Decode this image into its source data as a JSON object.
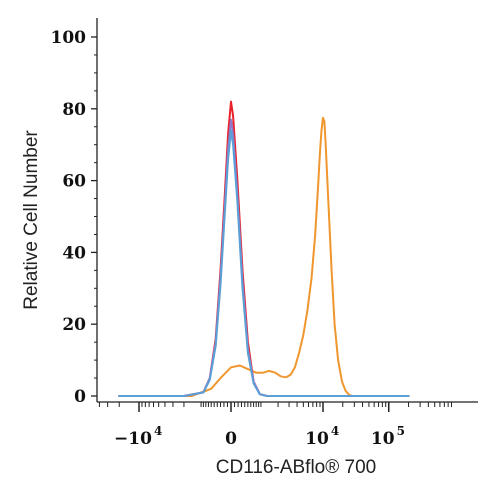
{
  "chart_data": {
    "type": "line",
    "title": "",
    "xlabel": "CD116-ABflo® 700",
    "ylabel": "Relative Cell Number",
    "ylim": [
      0,
      100
    ],
    "x_ticks": [
      {
        "base": "−10",
        "exp": "4",
        "pos": -10000
      },
      {
        "base": "0",
        "exp": "",
        "pos": 0
      },
      {
        "base": "10",
        "exp": "4",
        "pos": 10000
      },
      {
        "base": "10",
        "exp": "5",
        "pos": 100000
      }
    ],
    "y_ticks": [
      0,
      20,
      40,
      60,
      80,
      100
    ],
    "series": [
      {
        "color": "#f0962e",
        "points": [
          [
            -20000,
            0
          ],
          [
            -1500,
            0
          ],
          [
            -600,
            2
          ],
          [
            -300,
            5
          ],
          [
            0,
            8
          ],
          [
            250,
            8.5
          ],
          [
            500,
            7.5
          ],
          [
            800,
            6.5
          ],
          [
            1100,
            6.5
          ],
          [
            1400,
            7
          ],
          [
            1800,
            6.5
          ],
          [
            2200,
            5.5
          ],
          [
            2700,
            5.2
          ],
          [
            3200,
            6
          ],
          [
            3700,
            8
          ],
          [
            4300,
            12
          ],
          [
            5000,
            17
          ],
          [
            5800,
            24
          ],
          [
            6700,
            33
          ],
          [
            7600,
            45
          ],
          [
            8400,
            58
          ],
          [
            9000,
            68
          ],
          [
            9500,
            74
          ],
          [
            10000,
            77.5
          ],
          [
            10500,
            76.5
          ],
          [
            11000,
            70
          ],
          [
            12000,
            55
          ],
          [
            13500,
            35
          ],
          [
            15000,
            20
          ],
          [
            17000,
            10
          ],
          [
            19500,
            4
          ],
          [
            22000,
            1.5
          ],
          [
            25000,
            0.3
          ],
          [
            28000,
            0
          ],
          [
            200000,
            0
          ]
        ]
      },
      {
        "color": "#e8212a",
        "points": [
          [
            -20000,
            0
          ],
          [
            -2000,
            0
          ],
          [
            -900,
            1
          ],
          [
            -650,
            5
          ],
          [
            -450,
            16
          ],
          [
            -300,
            35
          ],
          [
            -180,
            55
          ],
          [
            -80,
            73
          ],
          [
            0,
            82
          ],
          [
            60,
            78
          ],
          [
            180,
            60
          ],
          [
            330,
            35
          ],
          [
            500,
            15
          ],
          [
            700,
            4
          ],
          [
            950,
            0.5
          ],
          [
            1300,
            0
          ],
          [
            200000,
            0
          ]
        ]
      },
      {
        "color": "#9079c8",
        "points": [
          [
            -20000,
            0
          ],
          [
            -2000,
            0
          ],
          [
            -900,
            1
          ],
          [
            -650,
            5
          ],
          [
            -450,
            15
          ],
          [
            -300,
            33
          ],
          [
            -180,
            52
          ],
          [
            -80,
            69
          ],
          [
            0,
            77
          ],
          [
            60,
            73
          ],
          [
            180,
            56
          ],
          [
            330,
            32
          ],
          [
            500,
            13
          ],
          [
            700,
            4
          ],
          [
            950,
            0.5
          ],
          [
            1300,
            0
          ],
          [
            200000,
            0
          ]
        ]
      },
      {
        "color": "#5a9fd6",
        "points": [
          [
            -20000,
            0
          ],
          [
            -2000,
            0
          ],
          [
            -900,
            1
          ],
          [
            -650,
            4.5
          ],
          [
            -450,
            14
          ],
          [
            -300,
            31
          ],
          [
            -180,
            50
          ],
          [
            -80,
            66
          ],
          [
            0,
            74
          ],
          [
            60,
            70
          ],
          [
            180,
            54
          ],
          [
            330,
            30
          ],
          [
            500,
            12
          ],
          [
            700,
            3.5
          ],
          [
            950,
            0.5
          ],
          [
            1300,
            0
          ],
          [
            200000,
            0
          ]
        ]
      }
    ]
  }
}
